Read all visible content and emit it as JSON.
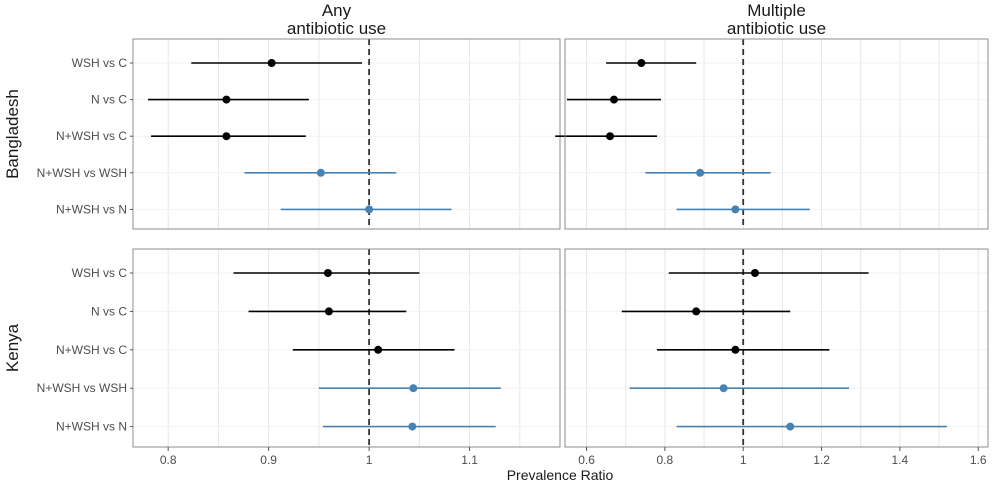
{
  "chart_data": {
    "type": "forest",
    "xlabel": "Prevalence Ratio",
    "reference_line": 1,
    "colors": {
      "comparison": "#000000",
      "factorial": "#4682b4",
      "panel_border": "#8c8c8c",
      "grid": "#e6e6e6",
      "reference": "#333333"
    },
    "columns": [
      {
        "title": [
          "Any",
          "antibiotic use"
        ],
        "xlim": [
          0.765,
          1.19
        ],
        "ticks": [
          0.8,
          0.9,
          1,
          1.1
        ],
        "tick_labels": [
          "0.8",
          "0.9",
          "1",
          "1.1"
        ]
      },
      {
        "title": [
          "Multiple",
          "antibiotic use"
        ],
        "xlim": [
          0.545,
          1.625
        ],
        "ticks": [
          0.6,
          0.8,
          1,
          1.2,
          1.4,
          1.6
        ],
        "tick_labels": [
          "0.6",
          "0.8",
          "1",
          "1.2",
          "1.4",
          "1.6"
        ]
      }
    ],
    "rows": [
      {
        "label": "Bangladesh",
        "comparisons": [
          "WSH vs C",
          "N vs C",
          "N+WSH vs C",
          "N+WSH vs WSH",
          "N+WSH vs N"
        ]
      },
      {
        "label": "Kenya",
        "comparisons": [
          "WSH vs C",
          "N vs C",
          "N+WSH vs C",
          "N+WSH vs WSH",
          "N+WSH vs N"
        ]
      }
    ],
    "panels": [
      {
        "row": 0,
        "col": 0,
        "estimates": [
          {
            "comparison": "WSH vs C",
            "pr": 0.903,
            "lower": 0.823,
            "upper": 0.993,
            "group": "comparison"
          },
          {
            "comparison": "N vs C",
            "pr": 0.858,
            "lower": 0.78,
            "upper": 0.94,
            "group": "comparison"
          },
          {
            "comparison": "N+WSH vs C",
            "pr": 0.858,
            "lower": 0.783,
            "upper": 0.937,
            "group": "comparison"
          },
          {
            "comparison": "N+WSH vs WSH",
            "pr": 0.952,
            "lower": 0.876,
            "upper": 1.027,
            "group": "factorial"
          },
          {
            "comparison": "N+WSH vs N",
            "pr": 1.0,
            "lower": 0.912,
            "upper": 1.082,
            "group": "factorial"
          }
        ]
      },
      {
        "row": 0,
        "col": 1,
        "estimates": [
          {
            "comparison": "WSH vs C",
            "pr": 0.74,
            "lower": 0.65,
            "upper": 0.88,
            "group": "comparison"
          },
          {
            "comparison": "N vs C",
            "pr": 0.67,
            "lower": 0.55,
            "upper": 0.79,
            "group": "comparison"
          },
          {
            "comparison": "N+WSH vs C",
            "pr": 0.66,
            "lower": 0.52,
            "upper": 0.78,
            "group": "comparison"
          },
          {
            "comparison": "N+WSH vs WSH",
            "pr": 0.89,
            "lower": 0.75,
            "upper": 1.07,
            "group": "factorial"
          },
          {
            "comparison": "N+WSH vs N",
            "pr": 0.98,
            "lower": 0.83,
            "upper": 1.17,
            "group": "factorial"
          }
        ]
      },
      {
        "row": 1,
        "col": 0,
        "estimates": [
          {
            "comparison": "WSH vs C",
            "pr": 0.959,
            "lower": 0.865,
            "upper": 1.05,
            "group": "comparison"
          },
          {
            "comparison": "N vs C",
            "pr": 0.96,
            "lower": 0.88,
            "upper": 1.037,
            "group": "comparison"
          },
          {
            "comparison": "N+WSH vs C",
            "pr": 1.009,
            "lower": 0.924,
            "upper": 1.085,
            "group": "comparison"
          },
          {
            "comparison": "N+WSH vs WSH",
            "pr": 1.044,
            "lower": 0.95,
            "upper": 1.131,
            "group": "factorial"
          },
          {
            "comparison": "N+WSH vs N",
            "pr": 1.043,
            "lower": 0.954,
            "upper": 1.126,
            "group": "factorial"
          }
        ]
      },
      {
        "row": 1,
        "col": 1,
        "estimates": [
          {
            "comparison": "WSH vs C",
            "pr": 1.03,
            "lower": 0.81,
            "upper": 1.32,
            "group": "comparison"
          },
          {
            "comparison": "N vs C",
            "pr": 0.88,
            "lower": 0.69,
            "upper": 1.12,
            "group": "comparison"
          },
          {
            "comparison": "N+WSH vs C",
            "pr": 0.98,
            "lower": 0.78,
            "upper": 1.22,
            "group": "comparison"
          },
          {
            "comparison": "N+WSH vs WSH",
            "pr": 0.95,
            "lower": 0.71,
            "upper": 1.27,
            "group": "factorial"
          },
          {
            "comparison": "N+WSH vs N",
            "pr": 1.12,
            "lower": 0.83,
            "upper": 1.52,
            "group": "factorial"
          }
        ]
      }
    ]
  }
}
